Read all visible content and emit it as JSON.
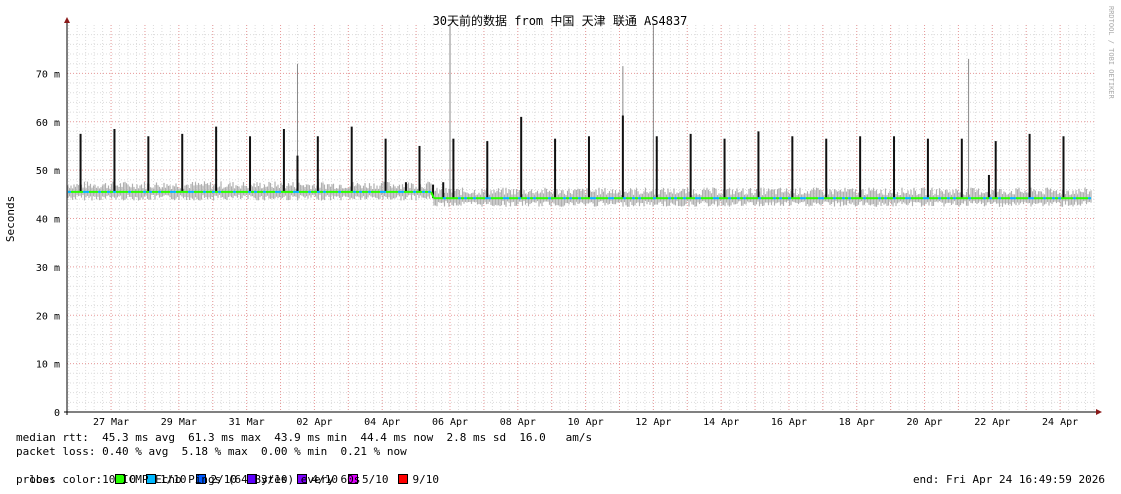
{
  "chart_data": {
    "type": "line",
    "title": "30天前的数据 from  中国 天津 联通 AS4837",
    "ylabel": "Seconds",
    "watermark": "RRDTOOL / TOBI OETIKER",
    "ylim": [
      0,
      80
    ],
    "y_ticks": [
      {
        "v": 0,
        "label": "0"
      },
      {
        "v": 10,
        "label": "10 m"
      },
      {
        "v": 20,
        "label": "20 m"
      },
      {
        "v": 30,
        "label": "30 m"
      },
      {
        "v": 40,
        "label": "40 m"
      },
      {
        "v": 50,
        "label": "50 m"
      },
      {
        "v": 60,
        "label": "60 m"
      },
      {
        "v": 70,
        "label": "70 m"
      }
    ],
    "x_ticks": [
      "27 Mar",
      "29 Mar",
      "31 Mar",
      "02 Apr",
      "04 Apr",
      "06 Apr",
      "08 Apr",
      "10 Apr",
      "12 Apr",
      "14 Apr",
      "16 Apr",
      "18 Apr",
      "20 Apr",
      "22 Apr",
      "24 Apr"
    ],
    "x_start_day": -1.3,
    "x_end_day": 29.0,
    "grid": true,
    "series_median": {
      "name": "median rtt",
      "segments": [
        {
          "from": -1.3,
          "to": 9.5,
          "value": 45.5
        },
        {
          "from": 9.5,
          "to": 29.0,
          "value": 44.2
        }
      ]
    },
    "spikes_ms": [
      {
        "day": -0.9,
        "value": 57.5
      },
      {
        "day": 0.1,
        "value": 58.5
      },
      {
        "day": 1.1,
        "value": 57.0
      },
      {
        "day": 2.1,
        "value": 57.5
      },
      {
        "day": 3.1,
        "value": 59.0
      },
      {
        "day": 4.1,
        "value": 57.0
      },
      {
        "day": 5.1,
        "value": 58.5
      },
      {
        "day": 5.5,
        "value": 53.0
      },
      {
        "day": 6.1,
        "value": 57.0
      },
      {
        "day": 7.1,
        "value": 59.0
      },
      {
        "day": 8.1,
        "value": 56.5
      },
      {
        "day": 8.7,
        "value": 47.5
      },
      {
        "day": 9.1,
        "value": 55.0
      },
      {
        "day": 9.5,
        "value": 47.0
      },
      {
        "day": 9.8,
        "value": 47.5
      },
      {
        "day": 10.1,
        "value": 56.5
      },
      {
        "day": 11.1,
        "value": 56.0
      },
      {
        "day": 12.1,
        "value": 61.0
      },
      {
        "day": 13.1,
        "value": 56.5
      },
      {
        "day": 14.1,
        "value": 57.0
      },
      {
        "day": 15.1,
        "value": 61.3
      },
      {
        "day": 16.1,
        "value": 57.0
      },
      {
        "day": 17.1,
        "value": 57.5
      },
      {
        "day": 18.1,
        "value": 56.5
      },
      {
        "day": 19.1,
        "value": 58.0
      },
      {
        "day": 20.1,
        "value": 57.0
      },
      {
        "day": 21.1,
        "value": 56.5
      },
      {
        "day": 22.1,
        "value": 57.0
      },
      {
        "day": 23.1,
        "value": 57.0
      },
      {
        "day": 24.1,
        "value": 56.5
      },
      {
        "day": 25.1,
        "value": 56.5
      },
      {
        "day": 25.9,
        "value": 49.0
      },
      {
        "day": 26.1,
        "value": 56.0
      },
      {
        "day": 27.1,
        "value": 57.5
      },
      {
        "day": 28.1,
        "value": 57.0
      }
    ],
    "outliers_ms": [
      {
        "day": 5.5,
        "value": 72.0
      },
      {
        "day": 10.0,
        "value": 80.0
      },
      {
        "day": 15.1,
        "value": 71.5
      },
      {
        "day": 16.0,
        "value": 80.0
      },
      {
        "day": 25.3,
        "value": 73.0
      }
    ],
    "colors": {
      "grid": "#e89a9a",
      "loss_0": "#26ff00",
      "loss_1": "#00b8ff",
      "loss_2": "#0059ff",
      "loss_3": "#5e00ff",
      "loss_4": "#7e00ff",
      "loss_5": "#dd00ff",
      "loss_9": "#ff0000",
      "smoke": "#b0b0b0",
      "axis_arrow": "#8b1a1a"
    }
  },
  "stats": {
    "median_line": "median rtt:  45.3 ms avg  61.3 ms max  43.9 ms min  44.4 ms now  2.8 ms sd  16.0   am/s",
    "loss_line": "packet loss: 0.40 % avg  5.18 % max  0.00 % min  0.21 % now",
    "loss_color_label": "loss color:",
    "loss_items": [
      {
        "label": "0",
        "color": "#26ff00"
      },
      {
        "label": "1/10",
        "color": "#00b8ff"
      },
      {
        "label": "2/10",
        "color": "#0059ff"
      },
      {
        "label": "3/10",
        "color": "#5e00ff"
      },
      {
        "label": "4/10",
        "color": "#7e00ff"
      },
      {
        "label": "5/10",
        "color": "#dd00ff"
      },
      {
        "label": "9/10",
        "color": "#ff0000"
      }
    ],
    "probe_line": "probe:       10 ICMP Echo Pings (64 Bytes) every 60s",
    "end_line": "end: Fri Apr 24 16:49:59 2026"
  }
}
